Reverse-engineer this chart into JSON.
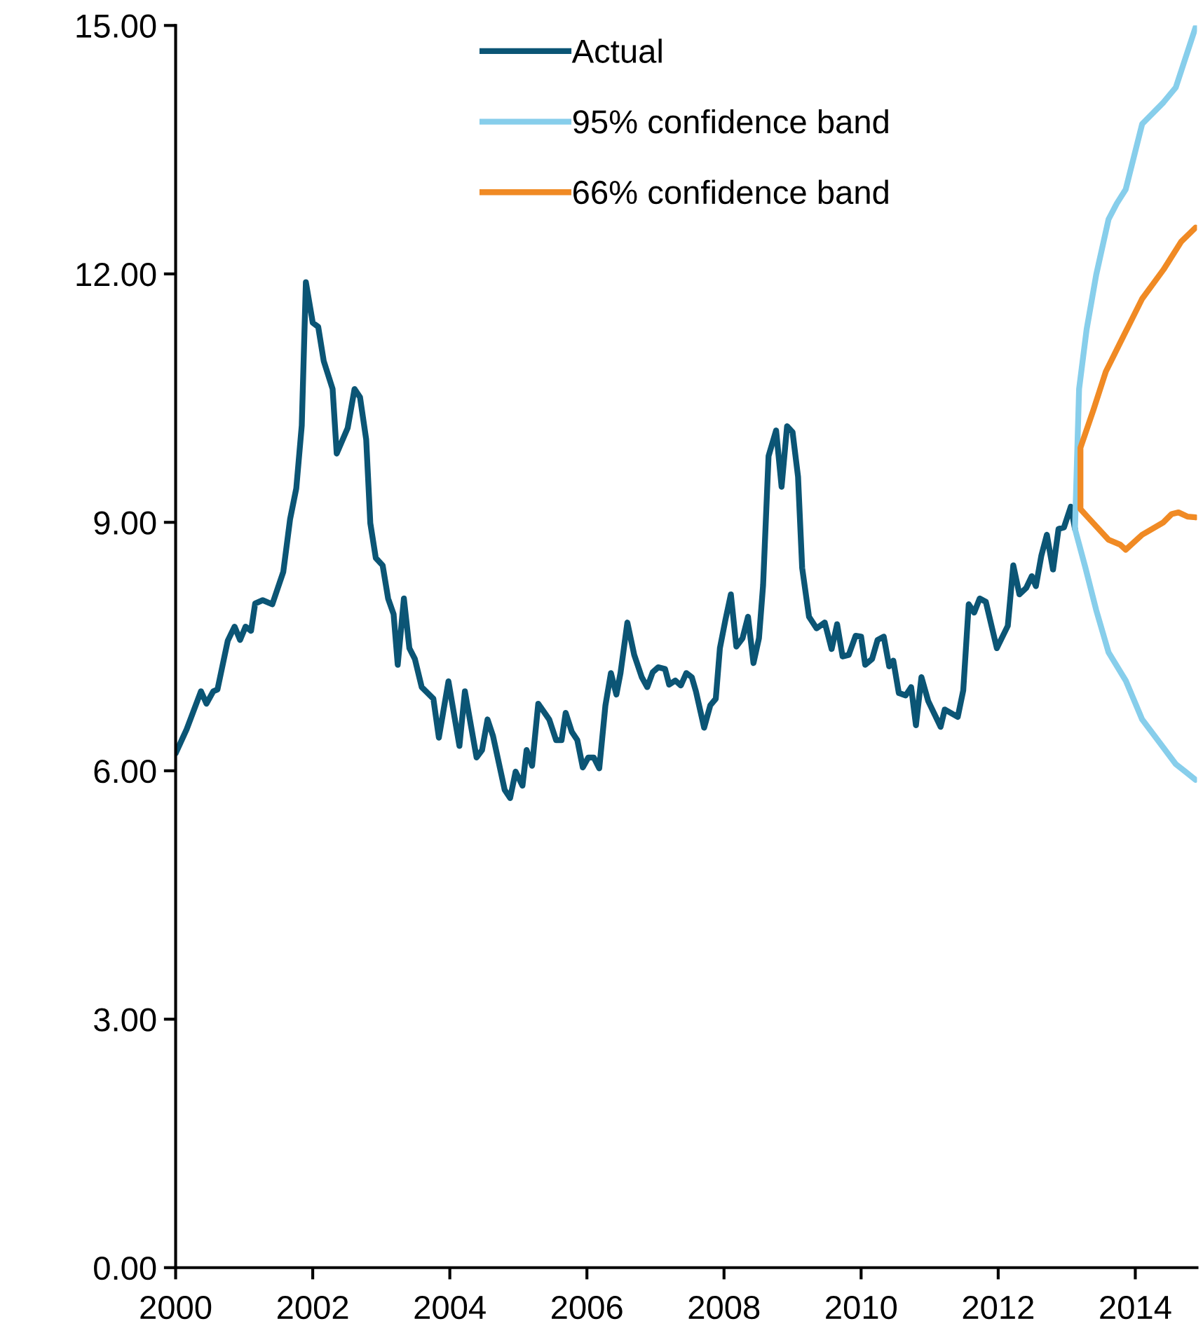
{
  "chart_data": {
    "type": "line",
    "xlim": [
      2000,
      2014.9
    ],
    "ylim": [
      0,
      15
    ],
    "yticks": [
      {
        "value": 0,
        "label": "0.00"
      },
      {
        "value": 3,
        "label": "3.00"
      },
      {
        "value": 6,
        "label": "6.00"
      },
      {
        "value": 9,
        "label": "9.00"
      },
      {
        "value": 12,
        "label": "12.00"
      },
      {
        "value": 15,
        "label": "15.00"
      }
    ],
    "xticks": [
      2000,
      2002,
      2004,
      2006,
      2008,
      2010,
      2012,
      2014
    ],
    "grid": false,
    "legend": "top",
    "line_style": "solid",
    "marker": "none",
    "series": [
      {
        "name": "Actual",
        "color": "#0b5575",
        "x": [
          2000.0,
          2000.16,
          2000.37,
          2000.45,
          2000.55,
          2000.61,
          2000.76,
          2000.86,
          2000.94,
          2001.02,
          2001.1,
          2001.16,
          2001.27,
          2001.41,
          2001.57,
          2001.67,
          2001.76,
          2001.84,
          2001.9,
          2002.0,
          2002.08,
          2002.16,
          2002.29,
          2002.35,
          2002.51,
          2002.61,
          2002.69,
          2002.78,
          2002.84,
          2002.92,
          2003.02,
          2003.1,
          2003.18,
          2003.24,
          2003.33,
          2003.41,
          2003.49,
          2003.59,
          2003.76,
          2003.84,
          2003.98,
          2004.14,
          2004.22,
          2004.39,
          2004.47,
          2004.55,
          2004.63,
          2004.8,
          2004.88,
          2004.96,
          2005.06,
          2005.12,
          2005.2,
          2005.29,
          2005.45,
          2005.55,
          2005.63,
          2005.69,
          2005.78,
          2005.86,
          2005.94,
          2006.02,
          2006.1,
          2006.18,
          2006.27,
          2006.35,
          2006.43,
          2006.49,
          2006.59,
          2006.69,
          2006.8,
          2006.88,
          2006.96,
          2007.04,
          2007.14,
          2007.2,
          2007.29,
          2007.37,
          2007.45,
          2007.53,
          2007.59,
          2007.71,
          2007.8,
          2007.88,
          2007.94,
          2008.02,
          2008.1,
          2008.18,
          2008.27,
          2008.35,
          2008.43,
          2008.51,
          2008.57,
          2008.65,
          2008.76,
          2008.84,
          2008.92,
          2009.0,
          2009.08,
          2009.14,
          2009.24,
          2009.35,
          2009.47,
          2009.57,
          2009.65,
          2009.73,
          2009.82,
          2009.92,
          2010.0,
          2010.06,
          2010.16,
          2010.24,
          2010.33,
          2010.41,
          2010.47,
          2010.55,
          2010.65,
          2010.73,
          2010.8,
          2010.88,
          2010.98,
          2011.16,
          2011.22,
          2011.41,
          2011.49,
          2011.57,
          2011.65,
          2011.73,
          2011.82,
          2011.98,
          2012.14,
          2012.22,
          2012.31,
          2012.41,
          2012.49,
          2012.55,
          2012.63,
          2012.71,
          2012.8,
          2012.88,
          2012.96,
          2013.06,
          2013.12
        ],
        "values": [
          6.21,
          6.5,
          6.96,
          6.81,
          6.96,
          6.98,
          7.57,
          7.74,
          7.58,
          7.74,
          7.69,
          8.02,
          8.06,
          8.01,
          8.4,
          9.04,
          9.41,
          10.17,
          11.9,
          11.41,
          11.36,
          10.95,
          10.61,
          9.83,
          10.14,
          10.61,
          10.51,
          10.0,
          8.99,
          8.57,
          8.48,
          8.08,
          7.89,
          7.28,
          8.08,
          7.48,
          7.35,
          7.01,
          6.87,
          6.4,
          7.08,
          6.3,
          6.96,
          6.16,
          6.25,
          6.62,
          6.42,
          5.77,
          5.67,
          5.99,
          5.82,
          6.25,
          6.06,
          6.81,
          6.62,
          6.37,
          6.37,
          6.7,
          6.47,
          6.37,
          6.04,
          6.16,
          6.16,
          6.03,
          6.79,
          7.18,
          6.92,
          7.18,
          7.79,
          7.4,
          7.13,
          7.01,
          7.19,
          7.25,
          7.23,
          7.04,
          7.09,
          7.03,
          7.18,
          7.13,
          6.96,
          6.52,
          6.79,
          6.87,
          7.48,
          7.82,
          8.13,
          7.5,
          7.6,
          7.86,
          7.3,
          7.6,
          8.24,
          9.8,
          10.11,
          9.43,
          10.16,
          10.09,
          9.55,
          8.45,
          7.86,
          7.72,
          7.79,
          7.47,
          7.77,
          7.38,
          7.4,
          7.63,
          7.62,
          7.28,
          7.35,
          7.58,
          7.62,
          7.26,
          7.33,
          6.94,
          6.91,
          7.01,
          6.55,
          7.13,
          6.84,
          6.53,
          6.74,
          6.65,
          6.97,
          8.01,
          7.91,
          8.08,
          8.04,
          7.48,
          7.75,
          8.48,
          8.13,
          8.21,
          8.35,
          8.23,
          8.6,
          8.85,
          8.43,
          8.92,
          8.94,
          9.19,
          8.92
        ]
      },
      {
        "name": "95% confidence band",
        "color": "#87ceeb",
        "x": [
          2014.88,
          2014.73,
          2014.59,
          2014.41,
          2014.1,
          2013.86,
          2013.61,
          2013.43,
          2013.27,
          2013.12,
          2013.18,
          2013.29,
          2013.43,
          2013.61,
          2013.73,
          2013.86,
          2014.1,
          2014.41,
          2014.59,
          2014.88
        ],
        "values": [
          5.89,
          5.99,
          6.08,
          6.28,
          6.62,
          7.09,
          7.43,
          7.94,
          8.46,
          8.92,
          10.61,
          11.33,
          11.99,
          12.66,
          12.85,
          13.02,
          13.81,
          14.07,
          14.25,
          14.98
        ]
      },
      {
        "name": "66% confidence band",
        "color": "#f08a24",
        "x": [
          2014.88,
          2014.76,
          2014.63,
          2014.53,
          2014.41,
          2014.1,
          2013.86,
          2013.78,
          2013.61,
          2013.31,
          2013.2,
          2013.2,
          2013.39,
          2013.57,
          2013.78,
          2014.1,
          2014.41,
          2014.67,
          2014.88
        ],
        "values": [
          9.06,
          9.07,
          9.12,
          9.1,
          9.0,
          8.85,
          8.67,
          8.73,
          8.79,
          9.06,
          9.16,
          9.9,
          10.36,
          10.82,
          11.17,
          11.7,
          12.05,
          12.39,
          12.56
        ]
      }
    ]
  }
}
